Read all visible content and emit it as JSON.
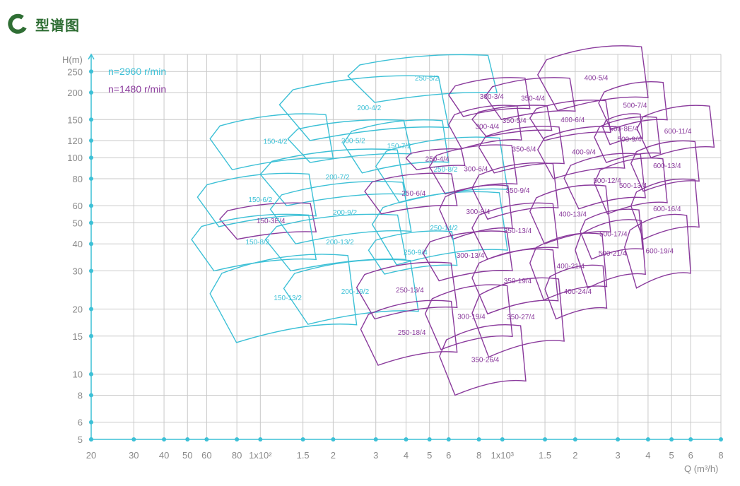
{
  "header": {
    "title": "型谱图",
    "logo_icon": "green-ring-icon"
  },
  "colors": {
    "cyan": "#3cc0d6",
    "purple": "#8a3a9c",
    "grid": "#c9c9c9",
    "axis": "#3cc0d6",
    "title": "#2f6e34"
  },
  "chart_data": {
    "type": "scatter",
    "title": "",
    "xlabel": "Q (m³/h)",
    "ylabel": "H(m)",
    "x_scale": "log",
    "y_scale": "log",
    "xlim": [
      20,
      8000
    ],
    "ylim": [
      5,
      300
    ],
    "grid": true,
    "legend_position": "top-left",
    "x_ticks": [
      {
        "v": 20,
        "l": "20"
      },
      {
        "v": 30,
        "l": "30"
      },
      {
        "v": 40,
        "l": "40"
      },
      {
        "v": 50,
        "l": "50"
      },
      {
        "v": 60,
        "l": "60"
      },
      {
        "v": 80,
        "l": "80"
      },
      {
        "v": 100,
        "l": "1x10²"
      },
      {
        "v": 150,
        "l": "1.5"
      },
      {
        "v": 200,
        "l": "2"
      },
      {
        "v": 300,
        "l": "3"
      },
      {
        "v": 400,
        "l": "4"
      },
      {
        "v": 500,
        "l": "5"
      },
      {
        "v": 600,
        "l": "6"
      },
      {
        "v": 800,
        "l": "8"
      },
      {
        "v": 1000,
        "l": "1x10³"
      },
      {
        "v": 1500,
        "l": "1.5"
      },
      {
        "v": 2000,
        "l": "2"
      },
      {
        "v": 3000,
        "l": "3"
      },
      {
        "v": 4000,
        "l": "4"
      },
      {
        "v": 5000,
        "l": "5"
      },
      {
        "v": 6000,
        "l": "6"
      },
      {
        "v": 8000,
        "l": "8"
      }
    ],
    "y_ticks": [
      {
        "v": 5,
        "l": "5"
      },
      {
        "v": 6,
        "l": "6"
      },
      {
        "v": 8,
        "l": "8"
      },
      {
        "v": 10,
        "l": "10"
      },
      {
        "v": 15,
        "l": "15"
      },
      {
        "v": 20,
        "l": "20"
      },
      {
        "v": 30,
        "l": "30"
      },
      {
        "v": 40,
        "l": "40"
      },
      {
        "v": 50,
        "l": "50"
      },
      {
        "v": 60,
        "l": "60"
      },
      {
        "v": 80,
        "l": "80"
      },
      {
        "v": 100,
        "l": "100"
      },
      {
        "v": 120,
        "l": "120"
      },
      {
        "v": 150,
        "l": "150"
      },
      {
        "v": 200,
        "l": "200"
      },
      {
        "v": 250,
        "l": "250"
      }
    ],
    "series": [
      {
        "name": "n=2960 r/min",
        "color": "#3cc0d6"
      },
      {
        "name": "n=1480 r/min",
        "color": "#8a3a9c"
      }
    ],
    "models": [
      {
        "label": "250-5/2",
        "q": [
          230,
          950
        ],
        "h": [
          180,
          300
        ],
        "series": 0
      },
      {
        "label": "200-4/2",
        "q": [
          120,
          600
        ],
        "h": [
          120,
          240
        ],
        "series": 0
      },
      {
        "label": "200-5/2",
        "q": [
          130,
          420
        ],
        "h": [
          95,
          150
        ],
        "series": 0
      },
      {
        "label": "150-7/2",
        "q": [
          220,
          600
        ],
        "h": [
          85,
          150
        ],
        "series": 0
      },
      {
        "label": "150-4/2",
        "q": [
          62,
          200
        ],
        "h": [
          88,
          160
        ],
        "series": 0
      },
      {
        "label": "250-8/2",
        "q": [
          300,
          1050
        ],
        "h": [
          62,
          125
        ],
        "series": 0
      },
      {
        "label": "200-7/2",
        "q": [
          100,
          400
        ],
        "h": [
          60,
          110
        ],
        "series": 0
      },
      {
        "label": "150-6/2",
        "q": [
          55,
          170
        ],
        "h": [
          48,
          85
        ],
        "series": 0
      },
      {
        "label": "150-3E/4",
        "q": [
          68,
          170
        ],
        "h": [
          42,
          62
        ],
        "series": 1
      },
      {
        "label": "200-9/2",
        "q": [
          110,
          420
        ],
        "h": [
          40,
          78
        ],
        "series": 0
      },
      {
        "label": "250-14/2",
        "q": [
          290,
          1050
        ],
        "h": [
          32,
          70
        ],
        "series": 0
      },
      {
        "label": "150-8/2",
        "q": [
          52,
          170
        ],
        "h": [
          30,
          55
        ],
        "series": 0
      },
      {
        "label": "200-13/2",
        "q": [
          105,
          400
        ],
        "h": [
          30,
          55
        ],
        "series": 0
      },
      {
        "label": "150-13/2",
        "q": [
          62,
          250
        ],
        "h": [
          14,
          36
        ],
        "series": 0
      },
      {
        "label": "200-19/2",
        "q": [
          125,
          450
        ],
        "h": [
          17,
          34
        ],
        "series": 0
      },
      {
        "label": "300-3/4",
        "q": [
          600,
          1300
        ],
        "h": [
          155,
          235
        ],
        "series": 1
      },
      {
        "label": "350-4/4",
        "q": [
          850,
          2000
        ],
        "h": [
          150,
          235
        ],
        "series": 1
      },
      {
        "label": "400-5/4",
        "q": [
          1400,
          4000
        ],
        "h": [
          165,
          330
        ],
        "series": 1
      },
      {
        "label": "500-7/4",
        "q": [
          2500,
          4800
        ],
        "h": [
          135,
          225
        ],
        "series": 1
      },
      {
        "label": "350-5/4",
        "q": [
          750,
          1600
        ],
        "h": [
          125,
          175
        ],
        "series": 1
      },
      {
        "label": "400-6/4",
        "q": [
          1300,
          2800
        ],
        "h": [
          120,
          185
        ],
        "series": 1
      },
      {
        "label": "300-4/4",
        "q": [
          600,
          1200
        ],
        "h": [
          110,
          175
        ],
        "series": 1
      },
      {
        "label": "500-8E/4",
        "q": [
          2600,
          3800
        ],
        "h": [
          115,
          160
        ],
        "series": 1
      },
      {
        "label": "500-9/4",
        "q": [
          2400,
          4500
        ],
        "h": [
          95,
          155
        ],
        "series": 1
      },
      {
        "label": "600-11/4",
        "q": [
          3600,
          7500
        ],
        "h": [
          100,
          175
        ],
        "series": 1
      },
      {
        "label": "350-6/4",
        "q": [
          800,
          1800
        ],
        "h": [
          85,
          140
        ],
        "series": 1
      },
      {
        "label": "400-9/4",
        "q": [
          1400,
          3200
        ],
        "h": [
          80,
          140
        ],
        "series": 1
      },
      {
        "label": "250-4/4",
        "q": [
          400,
          700
        ],
        "h": [
          88,
          110
        ],
        "series": 1
      },
      {
        "label": "600-13/4",
        "q": [
          3400,
          6500
        ],
        "h": [
          70,
          120
        ],
        "series": 1
      },
      {
        "label": "300-6/4",
        "q": [
          500,
          1150
        ],
        "h": [
          68,
          115
        ],
        "series": 1
      },
      {
        "label": "250-6/4",
        "q": [
          270,
          650
        ],
        "h": [
          55,
          85
        ],
        "series": 1
      },
      {
        "label": "500-12/4",
        "q": [
          1800,
          3900
        ],
        "h": [
          58,
          105
        ],
        "series": 1
      },
      {
        "label": "500-13/4",
        "q": [
          2400,
          4800
        ],
        "h": [
          55,
          100
        ],
        "series": 1
      },
      {
        "label": "350-9/4",
        "q": [
          750,
          1700
        ],
        "h": [
          52,
          95
        ],
        "series": 1
      },
      {
        "label": "400-13/4",
        "q": [
          1300,
          2800
        ],
        "h": [
          40,
          75
        ],
        "series": 1
      },
      {
        "label": "600-16/4",
        "q": [
          3400,
          6500
        ],
        "h": [
          42,
          80
        ],
        "series": 1
      },
      {
        "label": "300-8/4",
        "q": [
          550,
          1100
        ],
        "h": [
          42,
          75
        ],
        "series": 1
      },
      {
        "label": "500-17/4",
        "q": [
          2100,
          3800
        ],
        "h": [
          34,
          58
        ],
        "series": 1
      },
      {
        "label": "350-13/4",
        "q": [
          750,
          1700
        ],
        "h": [
          34,
          62
        ],
        "series": 1
      },
      {
        "label": "500-21/4",
        "q": [
          2000,
          3900
        ],
        "h": [
          25,
          52
        ],
        "series": 1
      },
      {
        "label": "600-19/4",
        "q": [
          3200,
          6000
        ],
        "h": [
          25,
          55
        ],
        "series": 1
      },
      {
        "label": "250-9/4",
        "q": [
          280,
          650
        ],
        "h": [
          29,
          46
        ],
        "series": 0
      },
      {
        "label": "300-13/4",
        "q": [
          470,
          1100
        ],
        "h": [
          27,
          46
        ],
        "series": 1
      },
      {
        "label": "400-21/4",
        "q": [
          1300,
          2700
        ],
        "h": [
          22,
          45
        ],
        "series": 1
      },
      {
        "label": "400-24/4",
        "q": [
          1500,
          2700
        ],
        "h": [
          18,
          32
        ],
        "series": 1
      },
      {
        "label": "350-19/4",
        "q": [
          750,
          1700
        ],
        "h": [
          19,
          38
        ],
        "series": 1
      },
      {
        "label": "250-13/4",
        "q": [
          250,
          650
        ],
        "h": [
          18,
          33
        ],
        "series": 1
      },
      {
        "label": "300-19/4",
        "q": [
          480,
          1100
        ],
        "h": [
          13,
          26
        ],
        "series": 1
      },
      {
        "label": "250-18/4",
        "q": [
          260,
          650
        ],
        "h": [
          11,
          22
        ],
        "series": 1
      },
      {
        "label": "350-27/4",
        "q": [
          750,
          1800
        ],
        "h": [
          12,
          28
        ],
        "series": 1
      },
      {
        "label": "350-26/4",
        "q": [
          550,
          1250
        ],
        "h": [
          8,
          17
        ],
        "series": 1
      }
    ]
  }
}
